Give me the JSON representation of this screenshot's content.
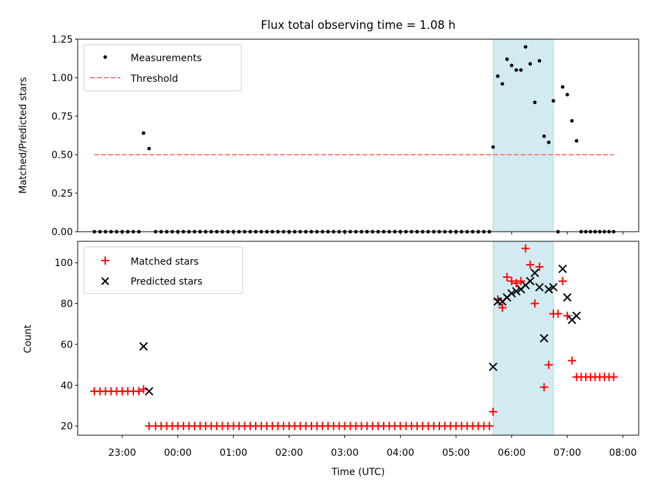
{
  "chart_data": {
    "title": "Flux total observing time = 1.08 h",
    "xlabel": "Time (UTC)",
    "xlim": [
      "22:12",
      "08:17"
    ],
    "xticks": [
      {
        "label": "23:00",
        "value": "23:00"
      },
      {
        "label": "00:00",
        "value": "00:00"
      },
      {
        "label": "01:00",
        "value": "01:00"
      },
      {
        "label": "02:00",
        "value": "02:00"
      },
      {
        "label": "03:00",
        "value": "03:00"
      },
      {
        "label": "04:00",
        "value": "04:00"
      },
      {
        "label": "05:00",
        "value": "05:00"
      },
      {
        "label": "06:00",
        "value": "06:00"
      },
      {
        "label": "07:00",
        "value": "07:00"
      },
      {
        "label": "08:00",
        "value": "08:00"
      }
    ],
    "span": {
      "start": "05:40",
      "end": "06:45",
      "color": "#add8e6"
    },
    "panels": [
      {
        "type": "scatter",
        "ylabel": "Matched/Predicted stars",
        "ylim": [
          0,
          1.25
        ],
        "yticks": [
          "0.00",
          "0.25",
          "0.50",
          "0.75",
          "1.00",
          "1.25"
        ],
        "legend": {
          "placement": "top-left",
          "entries": [
            "Measurements",
            "Threshold"
          ]
        },
        "series": [
          {
            "name": "Measurements",
            "marker": "dot",
            "color": "#000000",
            "points": [
              [
                "22:30",
                0
              ],
              [
                "22:36",
                0
              ],
              [
                "22:42",
                0
              ],
              [
                "22:48",
                0
              ],
              [
                "22:54",
                0
              ],
              [
                "23:00",
                0
              ],
              [
                "23:06",
                0
              ],
              [
                "23:12",
                0
              ],
              [
                "23:18",
                0
              ],
              [
                "23:23",
                0.64
              ],
              [
                "23:29",
                0.54
              ],
              [
                "23:36",
                0
              ],
              [
                "23:42",
                0
              ],
              [
                "23:48",
                0
              ],
              [
                "23:54",
                0
              ],
              [
                "00:00",
                0
              ],
              [
                "00:06",
                0
              ],
              [
                "00:12",
                0
              ],
              [
                "00:18",
                0
              ],
              [
                "00:24",
                0
              ],
              [
                "00:30",
                0
              ],
              [
                "00:36",
                0
              ],
              [
                "00:42",
                0
              ],
              [
                "00:48",
                0
              ],
              [
                "00:54",
                0
              ],
              [
                "01:00",
                0
              ],
              [
                "01:06",
                0
              ],
              [
                "01:12",
                0
              ],
              [
                "01:18",
                0
              ],
              [
                "01:24",
                0
              ],
              [
                "01:30",
                0
              ],
              [
                "01:36",
                0
              ],
              [
                "01:42",
                0
              ],
              [
                "01:48",
                0
              ],
              [
                "01:54",
                0
              ],
              [
                "02:00",
                0
              ],
              [
                "02:06",
                0
              ],
              [
                "02:12",
                0
              ],
              [
                "02:18",
                0
              ],
              [
                "02:24",
                0
              ],
              [
                "02:30",
                0
              ],
              [
                "02:36",
                0
              ],
              [
                "02:42",
                0
              ],
              [
                "02:48",
                0
              ],
              [
                "02:54",
                0
              ],
              [
                "03:00",
                0
              ],
              [
                "03:06",
                0
              ],
              [
                "03:12",
                0
              ],
              [
                "03:18",
                0
              ],
              [
                "03:24",
                0
              ],
              [
                "03:30",
                0
              ],
              [
                "03:36",
                0
              ],
              [
                "03:42",
                0
              ],
              [
                "03:48",
                0
              ],
              [
                "03:54",
                0
              ],
              [
                "04:00",
                0
              ],
              [
                "04:06",
                0
              ],
              [
                "04:12",
                0
              ],
              [
                "04:18",
                0
              ],
              [
                "04:24",
                0
              ],
              [
                "04:30",
                0
              ],
              [
                "04:36",
                0
              ],
              [
                "04:42",
                0
              ],
              [
                "04:48",
                0
              ],
              [
                "04:54",
                0
              ],
              [
                "05:00",
                0
              ],
              [
                "05:06",
                0
              ],
              [
                "05:12",
                0
              ],
              [
                "05:18",
                0
              ],
              [
                "05:24",
                0
              ],
              [
                "05:30",
                0
              ],
              [
                "05:36",
                0
              ],
              [
                "05:40",
                0.55
              ],
              [
                "05:45",
                1.01
              ],
              [
                "05:50",
                0.96
              ],
              [
                "05:55",
                1.12
              ],
              [
                "06:00",
                1.08
              ],
              [
                "06:05",
                1.05
              ],
              [
                "06:10",
                1.05
              ],
              [
                "06:15",
                1.2
              ],
              [
                "06:20",
                1.09
              ],
              [
                "06:25",
                0.84
              ],
              [
                "06:30",
                1.11
              ],
              [
                "06:35",
                0.62
              ],
              [
                "06:40",
                0.58
              ],
              [
                "06:45",
                0.85
              ],
              [
                "06:50",
                0
              ],
              [
                "06:55",
                0.94
              ],
              [
                "07:00",
                0.89
              ],
              [
                "07:05",
                0.72
              ],
              [
                "07:10",
                0.59
              ],
              [
                "07:15",
                0
              ],
              [
                "07:20",
                0
              ],
              [
                "07:25",
                0
              ],
              [
                "07:30",
                0
              ],
              [
                "07:35",
                0
              ],
              [
                "07:40",
                0
              ],
              [
                "07:45",
                0
              ],
              [
                "07:50",
                0
              ]
            ]
          },
          {
            "name": "Threshold",
            "marker": "dashed-line",
            "color": "#ff7f7f",
            "x": [
              "22:30",
              "07:50"
            ],
            "y": [
              0.5,
              0.5
            ]
          }
        ]
      },
      {
        "type": "scatter",
        "ylabel": "Count",
        "ylim": [
          15.5,
          110.5
        ],
        "yticks": [
          "20",
          "40",
          "60",
          "80",
          "100"
        ],
        "legend": {
          "placement": "top-left",
          "entries": [
            "Matched stars",
            "Predicted stars"
          ]
        },
        "series": [
          {
            "name": "Matched stars",
            "marker": "plus",
            "color": "#ff0000",
            "points": [
              [
                "22:30",
                37
              ],
              [
                "22:36",
                37
              ],
              [
                "22:42",
                37
              ],
              [
                "22:48",
                37
              ],
              [
                "22:54",
                37
              ],
              [
                "23:00",
                37
              ],
              [
                "23:06",
                37
              ],
              [
                "23:12",
                37
              ],
              [
                "23:18",
                37
              ],
              [
                "23:23",
                38
              ],
              [
                "23:29",
                20
              ],
              [
                "23:36",
                20
              ],
              [
                "23:42",
                20
              ],
              [
                "23:48",
                20
              ],
              [
                "23:54",
                20
              ],
              [
                "00:00",
                20
              ],
              [
                "00:06",
                20
              ],
              [
                "00:12",
                20
              ],
              [
                "00:18",
                20
              ],
              [
                "00:24",
                20
              ],
              [
                "00:30",
                20
              ],
              [
                "00:36",
                20
              ],
              [
                "00:42",
                20
              ],
              [
                "00:48",
                20
              ],
              [
                "00:54",
                20
              ],
              [
                "01:00",
                20
              ],
              [
                "01:06",
                20
              ],
              [
                "01:12",
                20
              ],
              [
                "01:18",
                20
              ],
              [
                "01:24",
                20
              ],
              [
                "01:30",
                20
              ],
              [
                "01:36",
                20
              ],
              [
                "01:42",
                20
              ],
              [
                "01:48",
                20
              ],
              [
                "01:54",
                20
              ],
              [
                "02:00",
                20
              ],
              [
                "02:06",
                20
              ],
              [
                "02:12",
                20
              ],
              [
                "02:18",
                20
              ],
              [
                "02:24",
                20
              ],
              [
                "02:30",
                20
              ],
              [
                "02:36",
                20
              ],
              [
                "02:42",
                20
              ],
              [
                "02:48",
                20
              ],
              [
                "02:54",
                20
              ],
              [
                "03:00",
                20
              ],
              [
                "03:06",
                20
              ],
              [
                "03:12",
                20
              ],
              [
                "03:18",
                20
              ],
              [
                "03:24",
                20
              ],
              [
                "03:30",
                20
              ],
              [
                "03:36",
                20
              ],
              [
                "03:42",
                20
              ],
              [
                "03:48",
                20
              ],
              [
                "03:54",
                20
              ],
              [
                "04:00",
                20
              ],
              [
                "04:06",
                20
              ],
              [
                "04:12",
                20
              ],
              [
                "04:18",
                20
              ],
              [
                "04:24",
                20
              ],
              [
                "04:30",
                20
              ],
              [
                "04:36",
                20
              ],
              [
                "04:42",
                20
              ],
              [
                "04:48",
                20
              ],
              [
                "04:54",
                20
              ],
              [
                "05:00",
                20
              ],
              [
                "05:06",
                20
              ],
              [
                "05:12",
                20
              ],
              [
                "05:18",
                20
              ],
              [
                "05:24",
                20
              ],
              [
                "05:30",
                20
              ],
              [
                "05:36",
                20
              ],
              [
                "05:40",
                27
              ],
              [
                "05:45",
                82
              ],
              [
                "05:50",
                78
              ],
              [
                "05:55",
                93
              ],
              [
                "06:00",
                91
              ],
              [
                "06:05",
                90
              ],
              [
                "06:10",
                91
              ],
              [
                "06:15",
                107
              ],
              [
                "06:20",
                99
              ],
              [
                "06:25",
                80
              ],
              [
                "06:30",
                98
              ],
              [
                "06:35",
                39
              ],
              [
                "06:40",
                50
              ],
              [
                "06:45",
                75
              ],
              [
                "06:50",
                75
              ],
              [
                "06:55",
                91
              ],
              [
                "07:00",
                74
              ],
              [
                "07:05",
                52
              ],
              [
                "07:10",
                44
              ],
              [
                "07:15",
                44
              ],
              [
                "07:20",
                44
              ],
              [
                "07:25",
                44
              ],
              [
                "07:30",
                44
              ],
              [
                "07:35",
                44
              ],
              [
                "07:40",
                44
              ],
              [
                "07:45",
                44
              ],
              [
                "07:50",
                44
              ]
            ]
          },
          {
            "name": "Predicted stars",
            "marker": "x",
            "color": "#000000",
            "points": [
              [
                "23:23",
                59
              ],
              [
                "23:29",
                37
              ],
              [
                "05:40",
                49
              ],
              [
                "05:45",
                81
              ],
              [
                "05:50",
                81
              ],
              [
                "05:55",
                83
              ],
              [
                "06:00",
                85
              ],
              [
                "06:05",
                86
              ],
              [
                "06:10",
                87
              ],
              [
                "06:15",
                89
              ],
              [
                "06:20",
                91
              ],
              [
                "06:25",
                95
              ],
              [
                "06:30",
                88
              ],
              [
                "06:35",
                63
              ],
              [
                "06:40",
                87
              ],
              [
                "06:45",
                88
              ],
              [
                "06:55",
                97
              ],
              [
                "07:00",
                83
              ],
              [
                "07:05",
                72
              ],
              [
                "07:10",
                74
              ]
            ]
          }
        ]
      }
    ]
  }
}
